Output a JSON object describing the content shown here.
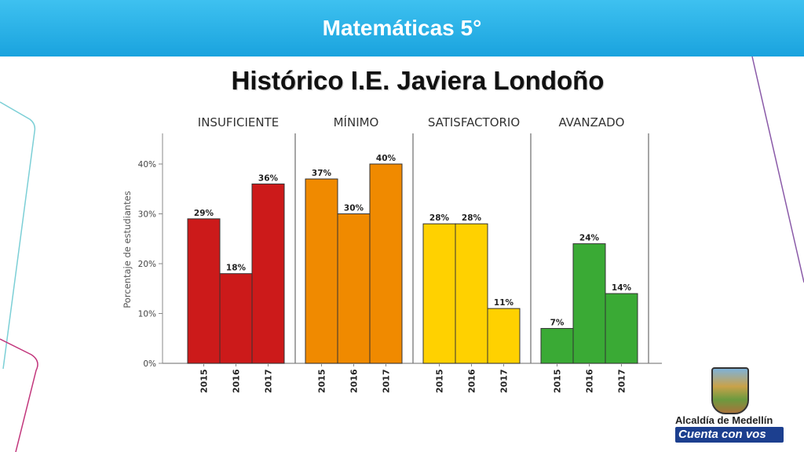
{
  "header": {
    "title": "Matemáticas 5°"
  },
  "subtitle": "Histórico I.E. Javiera Londoño",
  "colors": {
    "header": "#1aa3de",
    "insuficiente": "#cc1a1a",
    "minimo": "#f08a00",
    "satisfactorio": "#ffd100",
    "avanzado": "#3aaa35"
  },
  "logo": {
    "name": "Alcaldía de Medellín",
    "slogan": "Cuenta con vos"
  },
  "chart_data": {
    "type": "bar",
    "ylabel": "Porcentaje de estudiantes",
    "ylim": [
      0,
      45
    ],
    "yticks": [
      "0%",
      "10%",
      "20%",
      "30%",
      "40%"
    ],
    "ytick_values": [
      0,
      10,
      20,
      30,
      40
    ],
    "categories": [
      "2015",
      "2016",
      "2017"
    ],
    "series": [
      {
        "name": "INSUFICIENTE",
        "values": [
          29,
          18,
          36
        ],
        "labels": [
          "29%",
          "18%",
          "36%"
        ]
      },
      {
        "name": "MÍNIMO",
        "values": [
          37,
          30,
          40
        ],
        "labels": [
          "37%",
          "30%",
          "40%"
        ]
      },
      {
        "name": "SATISFACTORIO",
        "values": [
          28,
          28,
          11
        ],
        "labels": [
          "28%",
          "28%",
          "11%"
        ]
      },
      {
        "name": "AVANZADO",
        "values": [
          7,
          24,
          14
        ],
        "labels": [
          "7%",
          "24%",
          "14%"
        ]
      }
    ]
  }
}
